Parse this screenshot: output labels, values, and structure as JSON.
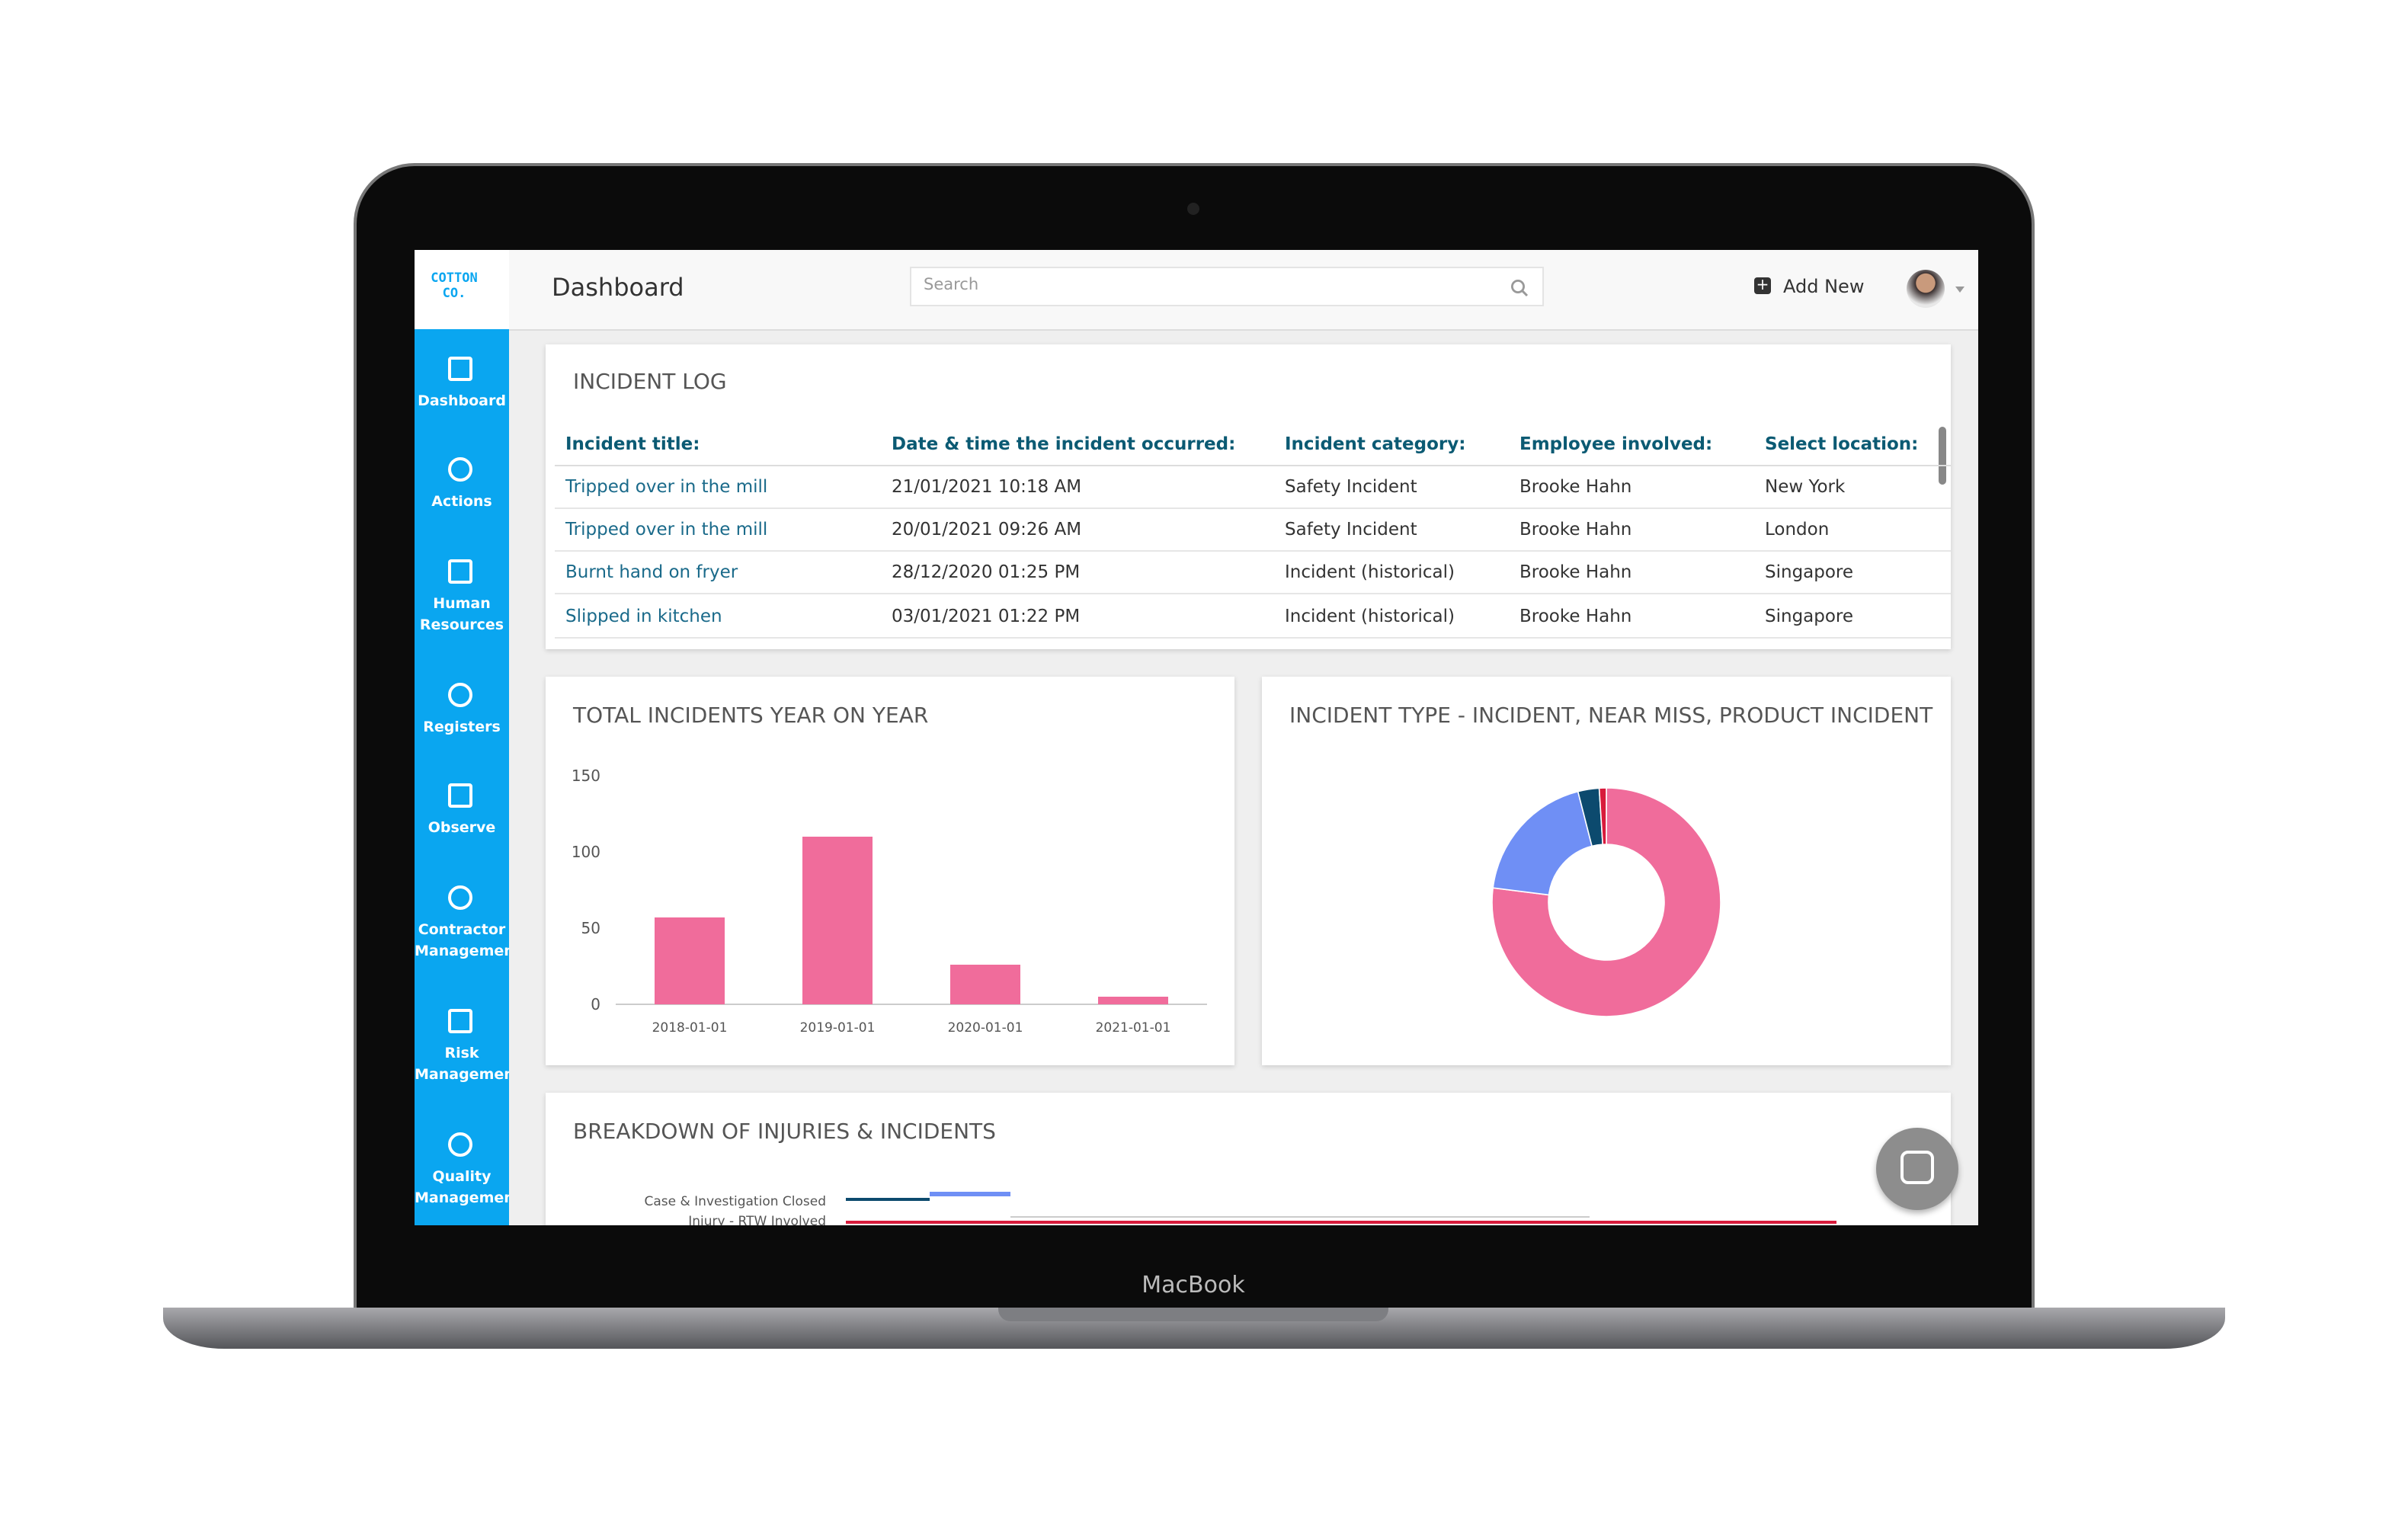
{
  "app": {
    "logo": "COTTON CO.",
    "page_title": "Dashboard",
    "search_placeholder": "Search",
    "add_new": "Add New",
    "device_label": "MacBook"
  },
  "sidebar": [
    "Dashboard",
    "Actions",
    "Human Resources",
    "Registers",
    "Observe",
    "Contractor Management",
    "Risk Management",
    "Quality Management"
  ],
  "incident_log": {
    "title": "INCIDENT LOG",
    "columns": [
      "Incident title:",
      "Date & time the incident occurred:",
      "Incident category:",
      "Employee involved:",
      "Select location:"
    ],
    "rows": [
      [
        "Tripped over in the mill",
        "21/01/2021 10:18 AM",
        "Safety Incident",
        "Brooke Hahn",
        "New York"
      ],
      [
        "Tripped over in the mill",
        "20/01/2021 09:26 AM",
        "Safety Incident",
        "Brooke Hahn",
        "London"
      ],
      [
        "Burnt hand on fryer",
        "28/12/2020 01:25 PM",
        "Incident (historical)",
        "Brooke Hahn",
        "Singapore"
      ],
      [
        "Slipped in kitchen",
        "03/01/2021 01:22 PM",
        "Incident (historical)",
        "Brooke Hahn",
        "Singapore"
      ]
    ]
  },
  "breakdown": {
    "title": "BREAKDOWN OF INJURIES & INCIDENTS",
    "labels": [
      "Case & Investigation Closed",
      "Injury - RTW Involved"
    ]
  },
  "chart_data": [
    {
      "type": "bar",
      "title": "TOTAL INCIDENTS YEAR ON YEAR",
      "categories": [
        "2018-01-01",
        "2019-01-01",
        "2020-01-01",
        "2021-01-01"
      ],
      "values": [
        57,
        110,
        26,
        5
      ],
      "color": "#f06c9b",
      "ylim": [
        0,
        150
      ],
      "yticks": [
        0,
        50,
        100,
        150
      ]
    },
    {
      "type": "pie",
      "title": "INCIDENT TYPE - INCIDENT, NEAR MISS, PRODUCT INCIDENT",
      "values": [
        77,
        19,
        3,
        1
      ],
      "colors": [
        "#f06c9b",
        "#6f8ff5",
        "#0c4a6e",
        "#d81b3c"
      ]
    }
  ]
}
